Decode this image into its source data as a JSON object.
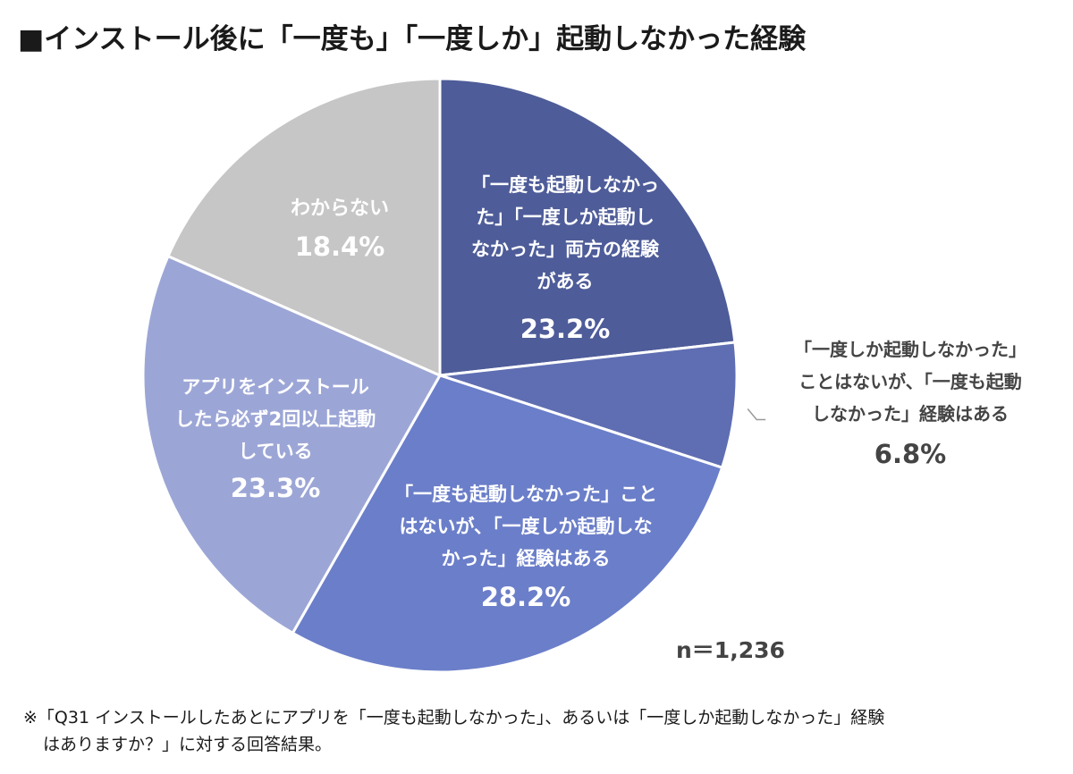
{
  "header": {
    "title": "■インストール後に「一度も」「一度しか」起動しなかった経験"
  },
  "chart_data": {
    "type": "pie",
    "start_angle_deg": 0,
    "direction": "clockwise",
    "slices": [
      {
        "label_lines": [
          "「一度も起動しなかっ",
          "た」「一度しか起動し",
          "なかった」両方の経験",
          "がある"
        ],
        "value": 23.2,
        "percent_label": "23.2%",
        "color": "#4e5c99"
      },
      {
        "label_lines": [
          "「一度しか起動しなかった」",
          "ことはないが、「一度も起動",
          "しなかった」経験はある"
        ],
        "value": 6.8,
        "percent_label": "6.8%",
        "color": "#5f6eb2"
      },
      {
        "label_lines": [
          "「一度も起動しなかった」こと",
          "はないが、「一度しか起動しな",
          "かった」経験はある"
        ],
        "value": 28.2,
        "percent_label": "28.2%",
        "color": "#6b7ec9"
      },
      {
        "label_lines": [
          "アプリをインストール",
          "したら必ず2回以上起動",
          "している"
        ],
        "value": 23.3,
        "percent_label": "23.3%",
        "color": "#9ca6d6"
      },
      {
        "label_lines": [
          "わからない"
        ],
        "value": 18.4,
        "percent_label": "18.4%",
        "color": "#c6c6c6"
      }
    ]
  },
  "sample_size": "n＝1,236",
  "footnote": {
    "lines": [
      "※「Q31 インストールしたあとにアプリを「一度も起動しなかった」、あるいは「一度しか起動しなかった」経験",
      "はありますか？」に対する回答結果。"
    ]
  }
}
